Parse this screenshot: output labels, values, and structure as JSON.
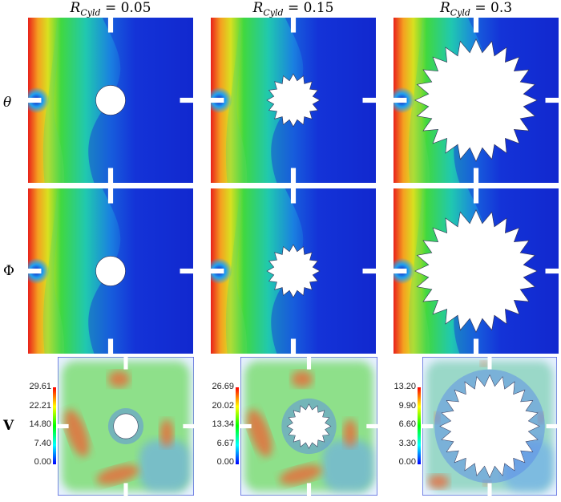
{
  "columns": [
    {
      "title_symbol": "R",
      "title_sub": "Cyld",
      "title_value": "= 0.05"
    },
    {
      "title_symbol": "R",
      "title_sub": "Cyld",
      "title_value": "= 0.15"
    },
    {
      "title_symbol": "R",
      "title_sub": "Cyld",
      "title_value": "= 0.3"
    }
  ],
  "rows": [
    {
      "label": "θ"
    },
    {
      "label": "Φ"
    },
    {
      "label": "V"
    }
  ],
  "velocity_colorbars": [
    {
      "ticks": [
        "29.61",
        "22.21",
        "14.80",
        "7.40",
        "0.00"
      ]
    },
    {
      "ticks": [
        "26.69",
        "20.02",
        "13.34",
        "6.67",
        "0.00"
      ]
    },
    {
      "ticks": [
        "13.20",
        "9.90",
        "6.60",
        "3.30",
        "0.00"
      ]
    }
  ]
}
